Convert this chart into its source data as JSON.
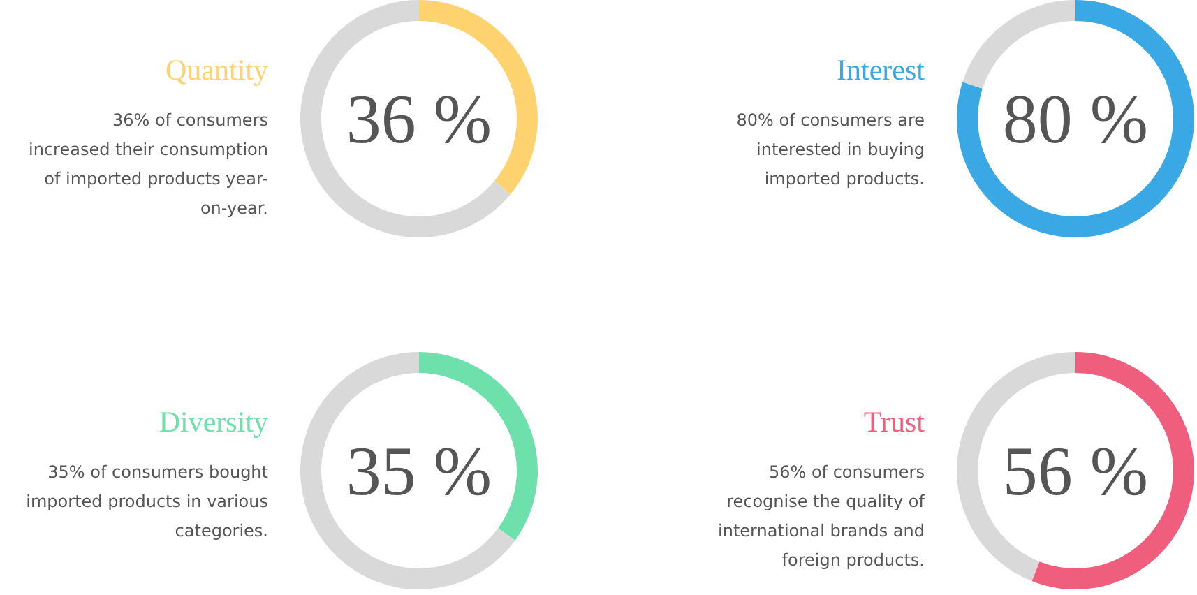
{
  "chart_data": [
    {
      "type": "donut",
      "title": "Quantity",
      "subtitle": "36% of consumers\nincreased their consumption\nof imported products year-\non-year.",
      "categories": [
        null,
        null
      ],
      "values": [
        36,
        64
      ],
      "colors": [
        "#ffd270",
        "#d9d9d9"
      ],
      "annotations": [
        "36 %"
      ]
    },
    {
      "type": "donut",
      "title": "Interest",
      "subtitle": "80% of consumers are\ninterested in buying\nimported products.",
      "categories": [
        null,
        null
      ],
      "values": [
        80,
        20
      ],
      "colors": [
        "#3aa8e4",
        "#d9d9d9"
      ],
      "annotations": [
        "80 %"
      ]
    },
    {
      "type": "donut",
      "title": "Diversity",
      "subtitle": "35% of consumers bought\nimported products in various\ncategories.",
      "categories": [
        null,
        null
      ],
      "values": [
        35,
        65
      ],
      "colors": [
        "#6de0ab",
        "#d9d9d9"
      ],
      "annotations": [
        "35 %"
      ]
    },
    {
      "type": "donut",
      "title": "Trust",
      "subtitle": "56% of consumers\nrecognise the quality of\ninternational brands and\nforeign products.",
      "categories": [
        null,
        null
      ],
      "values": [
        56,
        44
      ],
      "colors": [
        "#ef5f7d",
        "#d9d9d9"
      ],
      "annotations": [
        "56 %"
      ]
    }
  ]
}
